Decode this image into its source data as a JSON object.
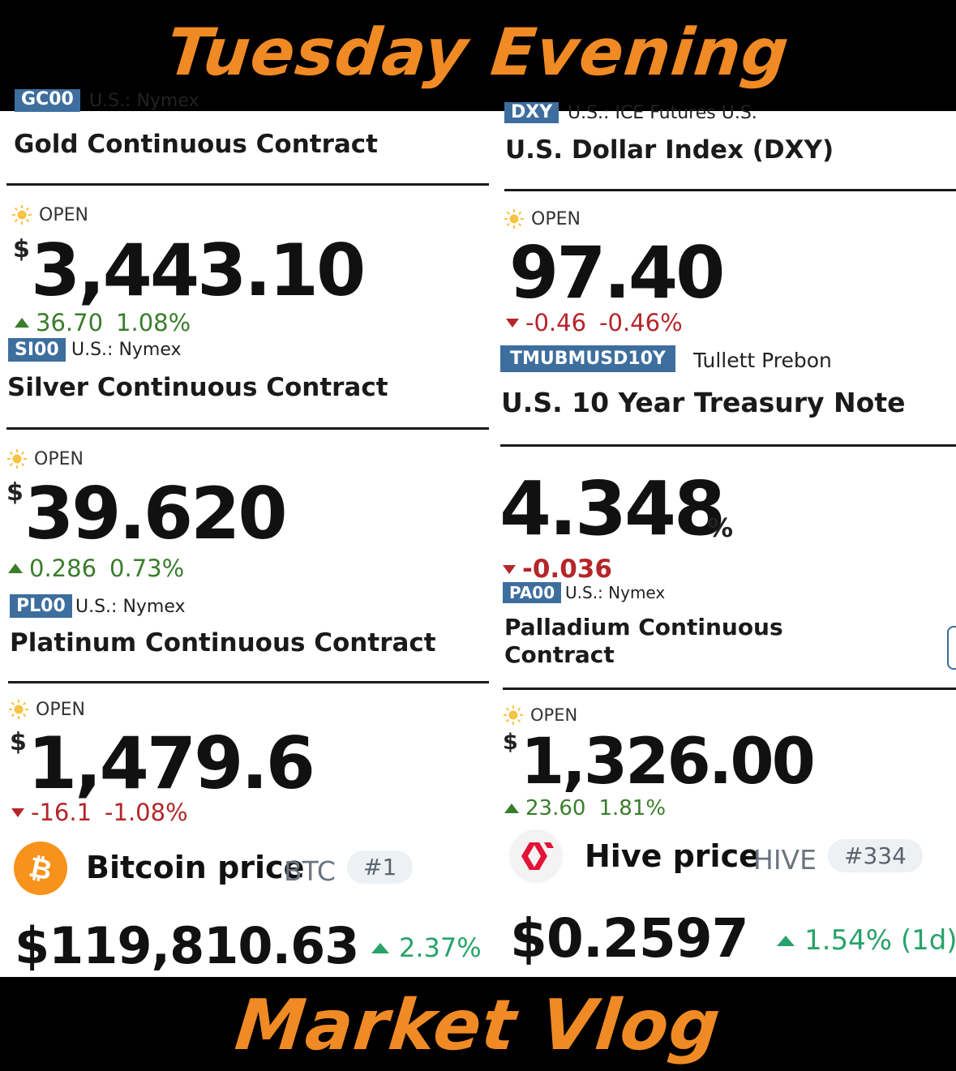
{
  "colors": {
    "banner_text": "#f08a24",
    "up": "#3a7d2c",
    "down": "#b5252a",
    "ticker_bg": "#3d6e9e",
    "crypto_up": "#27a36a",
    "bitcoin": "#f7931a",
    "hive": "#e31337"
  },
  "banner": {
    "top": "Tuesday Evening",
    "bottom": "Market Vlog"
  },
  "left": {
    "gold": {
      "ticker_partial": "GC00",
      "exchange_partial": "U.S.: Nymex",
      "name": "Gold Continuous Contract",
      "status": "OPEN",
      "currency": "$",
      "price": "3,443.10",
      "change": "36.70",
      "change_pct": "1.08%",
      "direction": "up"
    },
    "silver": {
      "ticker": "SI00",
      "exchange": "U.S.: Nymex",
      "name": "Silver Continuous Contract",
      "status": "OPEN",
      "currency": "$",
      "price": "39.620",
      "change": "0.286",
      "change_pct": "0.73%",
      "direction": "up"
    },
    "platinum": {
      "ticker": "PL00",
      "exchange": "U.S.: Nymex",
      "name": "Platinum Continuous Contract",
      "status": "OPEN",
      "currency": "$",
      "price": "1,479.6",
      "change": "-16.1",
      "change_pct": "-1.08%",
      "direction": "down"
    },
    "bitcoin": {
      "name": "Bitcoin price",
      "symbol": "BTC",
      "rank": "#1",
      "price": "$119,810.63",
      "change_pct": "2.37%",
      "icon": "bitcoin-icon"
    }
  },
  "right": {
    "dxy": {
      "ticker": "DXY",
      "exchange_partial": "U.S.: ICE Futures U.S.",
      "name": "U.S. Dollar Index (DXY)",
      "status": "OPEN",
      "price": "97.40",
      "change": "-0.46",
      "change_pct": "-0.46%",
      "direction": "down"
    },
    "tnote": {
      "ticker": "TMUBMUSD10Y",
      "exchange": "Tullett Prebon",
      "name": "U.S. 10 Year Treasury Note",
      "price": "4.348",
      "unit": "%",
      "change": "-0.036",
      "direction": "down"
    },
    "palladium": {
      "ticker": "PA00",
      "exchange": "U.S.: Nymex",
      "name_line1": "Palladium Continuous",
      "name_line2": "Contract",
      "status": "OPEN",
      "currency": "$",
      "price": "1,326.00",
      "change": "23.60",
      "change_pct": "1.81%",
      "direction": "up"
    },
    "hive": {
      "name": "Hive price",
      "symbol": "HIVE",
      "rank": "#334",
      "price": "$0.2597",
      "change_pct": "1.54% (1d)",
      "icon": "hive-icon"
    }
  }
}
